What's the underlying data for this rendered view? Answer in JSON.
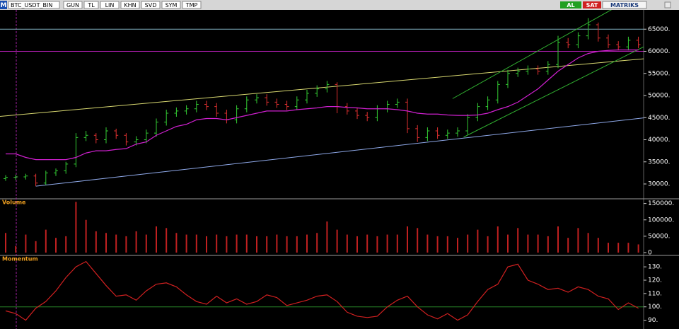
{
  "toolbar": {
    "logo": "M",
    "symbol": "BTC_USDT_BIN",
    "buttons": [
      "GUN",
      "TL",
      "LIN",
      "KHN",
      "SVD",
      "SYM",
      "TMP"
    ],
    "buy": "AL",
    "sell": "SAT",
    "brand": "MATRIKS"
  },
  "chart_data": [
    {
      "type": "ohlc",
      "up_color": "#33cc33",
      "down_color": "#e03030",
      "ylim": [
        26800,
        69200
      ],
      "yticks": [
        {
          "value": 30000,
          "label": "30000."
        },
        {
          "value": 35000,
          "label": "35000."
        },
        {
          "value": 40000,
          "label": "40000."
        },
        {
          "value": 45000,
          "label": "45000."
        },
        {
          "value": 50000,
          "label": "50000."
        },
        {
          "value": 55000,
          "label": "55000."
        },
        {
          "value": 60000,
          "label": "60000."
        },
        {
          "value": 65000,
          "label": "65000."
        }
      ],
      "open": [
        31200,
        31500,
        31600,
        31800,
        30200,
        32500,
        33000,
        34500,
        40500,
        41000,
        40000,
        42000,
        41000,
        39500,
        40000,
        41500,
        44000,
        46000,
        46500,
        47000,
        48000,
        47500,
        46000,
        44500,
        47000,
        49000,
        49500,
        48500,
        48000,
        47500,
        49000,
        50500,
        51500,
        52500,
        47500,
        46500,
        45500,
        45000,
        47000,
        48000,
        48500,
        42500,
        40500,
        42000,
        41000,
        41500,
        42000,
        45000,
        47500,
        49000,
        52500,
        55000,
        55500,
        56000,
        55500,
        57000,
        62000,
        61500,
        63500,
        66000,
        63000,
        61500,
        61000,
        62500
      ],
      "high": [
        32000,
        32100,
        32300,
        32300,
        33000,
        33500,
        35000,
        41500,
        42000,
        41500,
        42800,
        42500,
        41500,
        40800,
        42300,
        44800,
        46800,
        47300,
        47800,
        48800,
        48800,
        48300,
        46800,
        47800,
        49800,
        50300,
        50300,
        49300,
        48800,
        49800,
        51300,
        52300,
        53300,
        53000,
        48300,
        47300,
        46300,
        47800,
        48800,
        49300,
        49300,
        43300,
        42800,
        42800,
        42300,
        42800,
        45800,
        48300,
        49800,
        53300,
        55800,
        56300,
        56800,
        56800,
        57800,
        63500,
        63000,
        64300,
        67500,
        66500,
        63800,
        62300,
        63300,
        63300
      ],
      "low": [
        30700,
        30900,
        31000,
        29500,
        29800,
        31800,
        32300,
        33800,
        39700,
        39200,
        39200,
        40200,
        38700,
        38700,
        39200,
        40700,
        43200,
        45200,
        45700,
        46200,
        46700,
        45200,
        43700,
        43700,
        46200,
        48200,
        47700,
        47200,
        46700,
        46700,
        48200,
        49700,
        50700,
        46000,
        45700,
        44700,
        44200,
        44200,
        46200,
        47200,
        41500,
        39500,
        39700,
        40200,
        40200,
        40700,
        41200,
        44200,
        46700,
        48200,
        51700,
        54200,
        54700,
        54700,
        54700,
        56200,
        60700,
        60700,
        62700,
        62200,
        60700,
        60200,
        60200,
        60700
      ],
      "close": [
        31500,
        31600,
        31800,
        30200,
        32500,
        33000,
        34500,
        40500,
        41000,
        40000,
        42000,
        41000,
        39500,
        40000,
        41500,
        44000,
        46000,
        46500,
        47000,
        48000,
        47500,
        46000,
        44500,
        47000,
        49000,
        49500,
        48500,
        48000,
        47500,
        49000,
        50500,
        51500,
        52500,
        47500,
        46500,
        45500,
        45000,
        47000,
        48000,
        48500,
        42500,
        40500,
        42000,
        41000,
        41500,
        42000,
        45000,
        47500,
        49000,
        52500,
        55000,
        55500,
        56000,
        55500,
        57000,
        62000,
        61500,
        63500,
        66000,
        63000,
        61500,
        61000,
        62500,
        61500
      ],
      "moving_average": {
        "color": "#d020d0",
        "values": [
          36800,
          36800,
          36000,
          35500,
          35500,
          35500,
          35500,
          36000,
          37000,
          37500,
          37500,
          37800,
          38000,
          39000,
          39500,
          41000,
          42000,
          43000,
          43500,
          44500,
          44800,
          44800,
          44500,
          45000,
          45500,
          46000,
          46500,
          46500,
          46500,
          46800,
          47000,
          47200,
          47500,
          47500,
          47300,
          47200,
          47000,
          47000,
          47000,
          46800,
          46500,
          46000,
          45800,
          45800,
          45600,
          45500,
          45500,
          45600,
          46000,
          46800,
          47500,
          48500,
          50000,
          51500,
          53500,
          55500,
          57000,
          58500,
          59500,
          60000,
          60200,
          60300,
          60300,
          60300
        ]
      },
      "hlines": [
        {
          "value": 65000,
          "color": "#7fb0c0"
        },
        {
          "value": 60000,
          "color": "#c020c0"
        }
      ],
      "trendlines": [
        {
          "color": "#d8d870",
          "extend": "both",
          "points": [
            [
              0,
              45400
            ],
            [
              63,
              58200
            ]
          ]
        },
        {
          "color": "#8ea8e8",
          "extend": "right",
          "points": [
            [
              3,
              29500
            ],
            [
              63,
              44800
            ]
          ]
        },
        {
          "color": "#30b030",
          "extend": "right",
          "points": [
            [
              45.6,
              40600
            ],
            [
              65,
              62700
            ]
          ]
        },
        {
          "color": "#30b030",
          "extend": "right",
          "points": [
            [
              44.5,
              49300
            ],
            [
              60,
              69000
            ]
          ]
        }
      ]
    },
    {
      "type": "bar",
      "title": "Volume",
      "color": "#c02020",
      "ylim": [
        0,
        160000
      ],
      "yticks": [
        0,
        {
          "value": 50000,
          "label": "50000."
        },
        {
          "value": 100000,
          "label": "100000."
        },
        {
          "value": 150000,
          "label": "150000."
        }
      ],
      "values": [
        60000,
        20000,
        55000,
        35000,
        70000,
        45000,
        50000,
        155000,
        100000,
        65000,
        60000,
        55000,
        50000,
        65000,
        55000,
        80000,
        75000,
        60000,
        55000,
        55000,
        50000,
        55000,
        50000,
        55000,
        55000,
        50000,
        50000,
        55000,
        50000,
        50000,
        55000,
        60000,
        95000,
        70000,
        55000,
        50000,
        55000,
        50000,
        55000,
        55000,
        80000,
        75000,
        55000,
        50000,
        50000,
        45000,
        55000,
        70000,
        50000,
        80000,
        55000,
        75000,
        55000,
        55000,
        50000,
        80000,
        45000,
        75000,
        60000,
        45000,
        30000,
        30000,
        30000,
        25000
      ]
    },
    {
      "type": "line",
      "title": "Momentum",
      "color": "#d02020",
      "ylim": [
        85,
        137.5
      ],
      "yticks": [
        {
          "value": 90,
          "label": "90."
        },
        {
          "value": 100,
          "label": "100."
        },
        {
          "value": 110,
          "label": "110."
        },
        {
          "value": 120,
          "label": "120."
        },
        {
          "value": 130,
          "label": "130."
        }
      ],
      "hlines": [
        {
          "value": 100,
          "color": "#2a8a2a"
        }
      ],
      "values": [
        97,
        95,
        90,
        99,
        104,
        112,
        122,
        130,
        134,
        125,
        116,
        108,
        109,
        105,
        112,
        117,
        118,
        115,
        109,
        104,
        102,
        108,
        103,
        106,
        102,
        104,
        109,
        107,
        101,
        103,
        105,
        108,
        109,
        104,
        96,
        93,
        92,
        93,
        100,
        105,
        108,
        100,
        94,
        91,
        95,
        90,
        94,
        104,
        113,
        117,
        130,
        132,
        120,
        117,
        113,
        114,
        111,
        115,
        113,
        108,
        106,
        98,
        103,
        99
      ]
    }
  ]
}
